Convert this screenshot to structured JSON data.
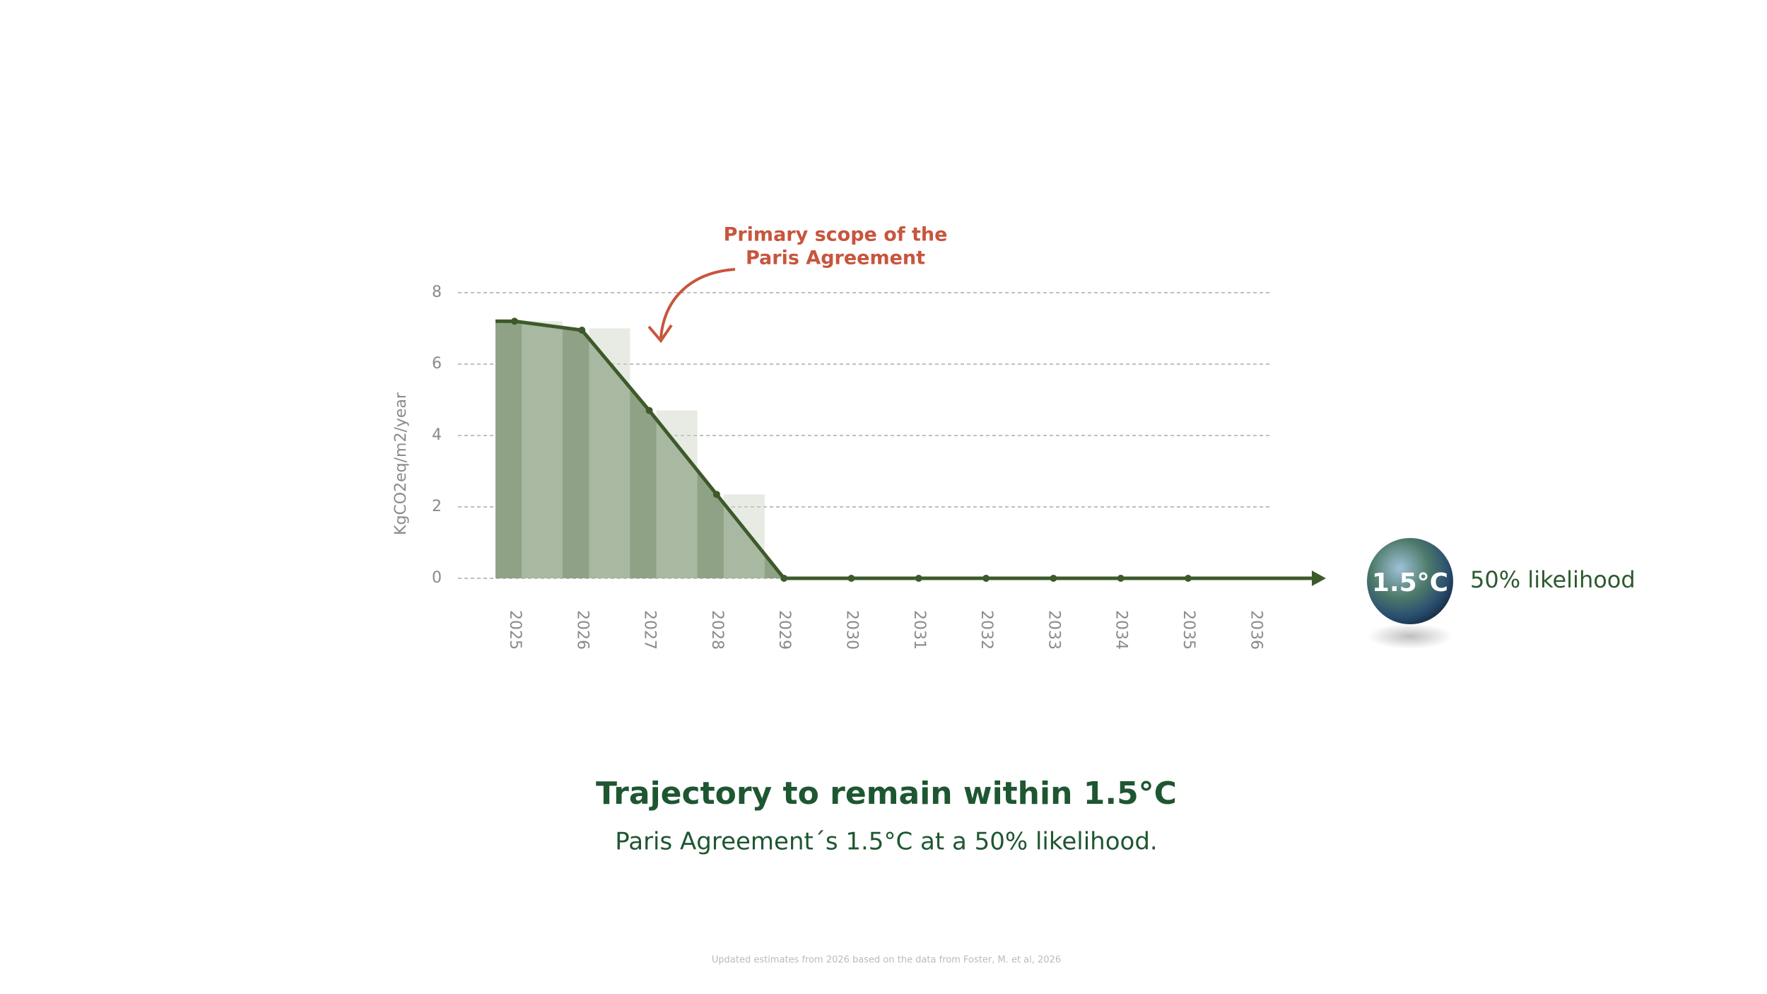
{
  "chart_data": {
    "type": "line",
    "title": "Trajectory to remain within 1.5°C",
    "subtitle": "Paris Agreement´s 1.5°C at a 50% likelihood.",
    "y_label": "KgCO2eq/m2/year",
    "annotation": [
      "Primary scope of the",
      "Paris Agreement"
    ],
    "categories": [
      "2025",
      "2026",
      "2027",
      "2028",
      "2029",
      "2030",
      "2031",
      "2032",
      "2033",
      "2034",
      "2035",
      "2036"
    ],
    "series": [
      {
        "color": "#3d5a2a",
        "values": [
          7.2,
          6.95,
          4.7,
          2.35,
          0,
          0,
          0,
          0,
          0,
          0,
          0,
          null
        ]
      },
      {
        "type": "bar",
        "color": "#c9d3c2",
        "values": [
          7.2,
          7.0,
          4.7,
          2.35,
          null,
          null,
          null,
          null,
          null,
          null,
          null,
          null
        ]
      }
    ],
    "area_color": "#8fa285",
    "ylim": [
      0,
      8
    ],
    "yticks": [
      0,
      2,
      4,
      6,
      8
    ],
    "grid": true,
    "end_marker": {
      "label": "1.5°C",
      "caption": "50% likelihood"
    },
    "footnote": "Updated estimates from 2026 based on the data from Foster, M. et al, 2026"
  }
}
